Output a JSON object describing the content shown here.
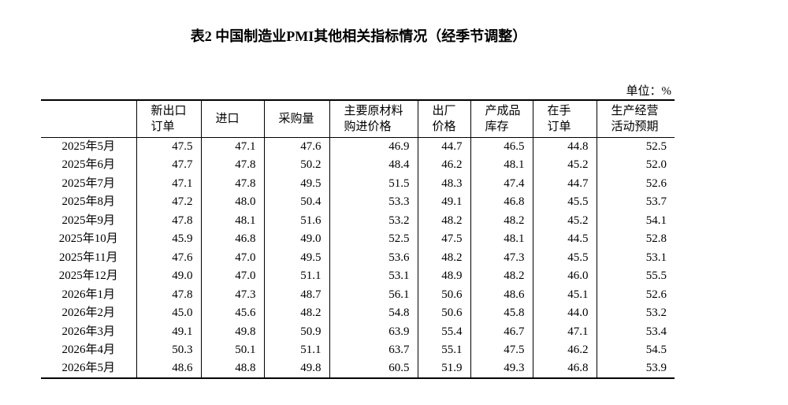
{
  "title": "表2 中国制造业PMI其他相关指标情况（经季节调整）",
  "unit": "单位：%",
  "table": {
    "header": [
      [],
      [
        "新出口",
        "订单"
      ],
      [
        "进口"
      ],
      [
        "采购量"
      ],
      [
        "主要原材料",
        "购进价格"
      ],
      [
        "出厂",
        "价格"
      ],
      [
        "产成品",
        "库存"
      ],
      [
        "在手",
        "订单"
      ],
      [
        "生产经营",
        "活动预期"
      ]
    ],
    "rows": [
      [
        "2025年5月",
        "47.5",
        "47.1",
        "47.6",
        "46.9",
        "44.7",
        "46.5",
        "44.8",
        "52.5"
      ],
      [
        "2025年6月",
        "47.7",
        "47.8",
        "50.2",
        "48.4",
        "46.2",
        "48.1",
        "45.2",
        "52.0"
      ],
      [
        "2025年7月",
        "47.1",
        "47.8",
        "49.5",
        "51.5",
        "48.3",
        "47.4",
        "44.7",
        "52.6"
      ],
      [
        "2025年8月",
        "47.2",
        "48.0",
        "50.4",
        "53.3",
        "49.1",
        "46.8",
        "45.5",
        "53.7"
      ],
      [
        "2025年9月",
        "47.8",
        "48.1",
        "51.6",
        "53.2",
        "48.2",
        "48.2",
        "45.2",
        "54.1"
      ],
      [
        "2025年10月",
        "45.9",
        "46.8",
        "49.0",
        "52.5",
        "47.5",
        "48.1",
        "44.5",
        "52.8"
      ],
      [
        "2025年11月",
        "47.6",
        "47.0",
        "49.5",
        "53.6",
        "48.2",
        "47.3",
        "45.5",
        "53.1"
      ],
      [
        "2025年12月",
        "49.0",
        "47.0",
        "51.1",
        "53.1",
        "48.9",
        "48.2",
        "46.0",
        "55.5"
      ],
      [
        "2026年1月",
        "47.8",
        "47.3",
        "48.7",
        "56.1",
        "50.6",
        "48.6",
        "45.1",
        "52.6"
      ],
      [
        "2026年2月",
        "45.0",
        "45.6",
        "48.2",
        "54.8",
        "50.6",
        "45.8",
        "44.0",
        "53.2"
      ],
      [
        "2026年3月",
        "49.1",
        "49.8",
        "50.9",
        "63.9",
        "55.4",
        "46.7",
        "47.1",
        "53.4"
      ],
      [
        "2026年4月",
        "50.3",
        "50.1",
        "51.1",
        "63.7",
        "55.1",
        "47.5",
        "46.2",
        "54.5"
      ],
      [
        "2026年5月",
        "48.6",
        "48.8",
        "49.8",
        "60.5",
        "51.9",
        "49.3",
        "46.8",
        "53.9"
      ]
    ]
  }
}
